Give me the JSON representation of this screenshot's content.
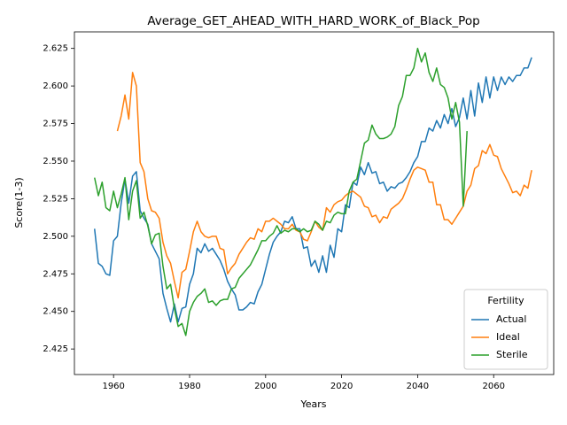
{
  "chart_data": {
    "type": "line",
    "title": "Average_GET_AHEAD_WITH_HARD_WORK_of_Black_Pop",
    "xlabel": "Years",
    "ylabel": "Score(1-3)",
    "legend_title": "Fertility",
    "legend": "lower right",
    "grid": false,
    "xlim": [
      1949.7,
      2075.8
    ],
    "ylim": [
      2.408,
      2.636
    ],
    "xticks": [
      1960,
      1980,
      2000,
      2020,
      2040,
      2060
    ],
    "yticks": [
      2.425,
      {
        "value": 2.45,
        "label": "2.450"
      },
      2.475,
      {
        "value": 2.5,
        "label": "2.500"
      },
      2.525,
      {
        "value": 2.55,
        "label": "2.550"
      },
      2.575,
      {
        "value": 2.6,
        "label": "2.600"
      },
      2.625
    ],
    "x": [
      1955,
      1956,
      1957,
      1958,
      1959,
      1960,
      1961,
      1962,
      1963,
      1964,
      1965,
      1966,
      1967,
      1968,
      1969,
      1970,
      1971,
      1972,
      1973,
      1974,
      1975,
      1976,
      1977,
      1978,
      1979,
      1980,
      1981,
      1982,
      1983,
      1984,
      1985,
      1986,
      1987,
      1988,
      1989,
      1990,
      1991,
      1992,
      1993,
      1994,
      1995,
      1996,
      1997,
      1998,
      1999,
      2000,
      2001,
      2002,
      2003,
      2004,
      2005,
      2006,
      2007,
      2008,
      2009,
      2010,
      2011,
      2012,
      2013,
      2014,
      2015,
      2016,
      2017,
      2018,
      2019,
      2020,
      2021,
      2022,
      2023,
      2024,
      2025,
      2026,
      2027,
      2028,
      2029,
      2030,
      2031,
      2032,
      2033,
      2034,
      2035,
      2036,
      2037,
      2038,
      2039,
      2040,
      2041,
      2042,
      2043,
      2044,
      2045,
      2046,
      2047,
      2048,
      2049,
      2050,
      2051,
      2052,
      2053,
      2054,
      2055,
      2056,
      2057,
      2058,
      2059,
      2060,
      2061,
      2062,
      2063,
      2064,
      2065,
      2066,
      2067,
      2068,
      2069,
      2070
    ],
    "series": [
      {
        "name": "Actual",
        "color": "#1f77b4",
        "values": [
          2.505,
          2.482,
          2.48,
          2.475,
          2.474,
          2.497,
          2.5,
          2.522,
          2.538,
          2.522,
          2.54,
          2.543,
          2.517,
          2.512,
          2.508,
          2.495,
          2.49,
          2.485,
          2.462,
          2.452,
          2.443,
          2.455,
          2.443,
          2.452,
          2.453,
          2.468,
          2.475,
          2.492,
          2.489,
          2.495,
          2.49,
          2.492,
          2.488,
          2.484,
          2.478,
          2.47,
          2.465,
          2.461,
          2.451,
          2.451,
          2.453,
          2.456,
          2.455,
          2.463,
          2.468,
          2.478,
          2.488,
          2.496,
          2.5,
          2.503,
          2.51,
          2.509,
          2.513,
          2.505,
          2.505,
          2.492,
          2.493,
          2.48,
          2.484,
          2.476,
          2.487,
          2.476,
          2.494,
          2.486,
          2.505,
          2.503,
          2.521,
          2.519,
          2.536,
          2.534,
          2.546,
          2.541,
          2.549,
          2.542,
          2.543,
          2.535,
          2.536,
          2.53,
          2.533,
          2.532,
          2.535,
          2.536,
          2.539,
          2.543,
          2.549,
          2.553,
          2.563,
          2.563,
          2.572,
          2.57,
          2.577,
          2.572,
          2.581,
          2.575,
          2.585,
          2.573,
          2.579,
          2.592,
          2.578,
          2.597,
          2.58,
          2.602,
          2.589,
          2.606,
          2.592,
          2.606,
          2.597,
          2.606,
          2.601,
          2.606,
          2.603,
          2.607,
          2.607,
          2.612,
          2.612,
          2.619
        ]
      },
      {
        "name": "Ideal",
        "color": "#ff7f0e",
        "values": [
          null,
          null,
          null,
          null,
          null,
          null,
          2.57,
          2.58,
          2.594,
          2.578,
          2.609,
          2.6,
          2.549,
          2.543,
          2.525,
          2.517,
          2.516,
          2.512,
          2.496,
          2.487,
          2.482,
          2.47,
          2.459,
          2.476,
          2.478,
          2.49,
          2.503,
          2.51,
          2.503,
          2.5,
          2.499,
          2.5,
          2.5,
          2.492,
          2.491,
          2.475,
          2.479,
          2.482,
          2.488,
          2.492,
          2.496,
          2.499,
          2.498,
          2.505,
          2.503,
          2.51,
          2.51,
          2.512,
          2.51,
          2.508,
          2.505,
          2.505,
          2.508,
          2.504,
          2.503,
          2.498,
          2.497,
          2.503,
          2.51,
          2.506,
          2.504,
          2.519,
          2.516,
          2.521,
          2.523,
          2.524,
          2.527,
          2.529,
          2.53,
          2.528,
          2.526,
          2.52,
          2.519,
          2.513,
          2.514,
          2.509,
          2.513,
          2.512,
          2.518,
          2.52,
          2.522,
          2.525,
          2.531,
          2.538,
          2.544,
          2.546,
          2.545,
          2.544,
          2.536,
          2.536,
          2.521,
          2.521,
          2.511,
          2.511,
          2.508,
          2.512,
          2.516,
          2.52,
          2.53,
          2.534,
          2.545,
          2.547,
          2.557,
          2.555,
          2.561,
          2.554,
          2.553,
          2.545,
          2.54,
          2.535,
          2.529,
          2.53,
          2.527,
          2.534,
          2.532,
          2.544
        ]
      },
      {
        "name": "Sterile",
        "color": "#2ca02c",
        "values": [
          2.539,
          2.527,
          2.536,
          2.519,
          2.517,
          2.53,
          2.519,
          2.528,
          2.539,
          2.511,
          2.53,
          2.537,
          2.512,
          2.516,
          2.507,
          2.495,
          2.501,
          2.502,
          2.48,
          2.465,
          2.468,
          2.452,
          2.44,
          2.442,
          2.434,
          2.45,
          2.456,
          2.46,
          2.462,
          2.465,
          2.456,
          2.457,
          2.454,
          2.457,
          2.458,
          2.458,
          2.465,
          2.466,
          2.472,
          2.475,
          2.478,
          2.481,
          2.486,
          2.491,
          2.497,
          2.497,
          2.5,
          2.502,
          2.507,
          2.502,
          2.504,
          2.503,
          2.505,
          2.505,
          2.503,
          2.505,
          2.503,
          2.504,
          2.51,
          2.508,
          2.504,
          2.51,
          2.509,
          2.514,
          2.516,
          2.515,
          2.515,
          2.53,
          2.536,
          2.538,
          2.55,
          2.562,
          2.564,
          2.574,
          2.568,
          2.565,
          2.565,
          2.566,
          2.568,
          2.573,
          2.587,
          2.593,
          2.607,
          2.607,
          2.612,
          2.625,
          2.616,
          2.622,
          2.609,
          2.603,
          2.612,
          2.601,
          2.599,
          2.592,
          2.578,
          2.589,
          2.576,
          2.52,
          2.57,
          null,
          null,
          null,
          null,
          null,
          null,
          null,
          null,
          null,
          null,
          null,
          null,
          null,
          null,
          null,
          null,
          null
        ]
      }
    ]
  }
}
